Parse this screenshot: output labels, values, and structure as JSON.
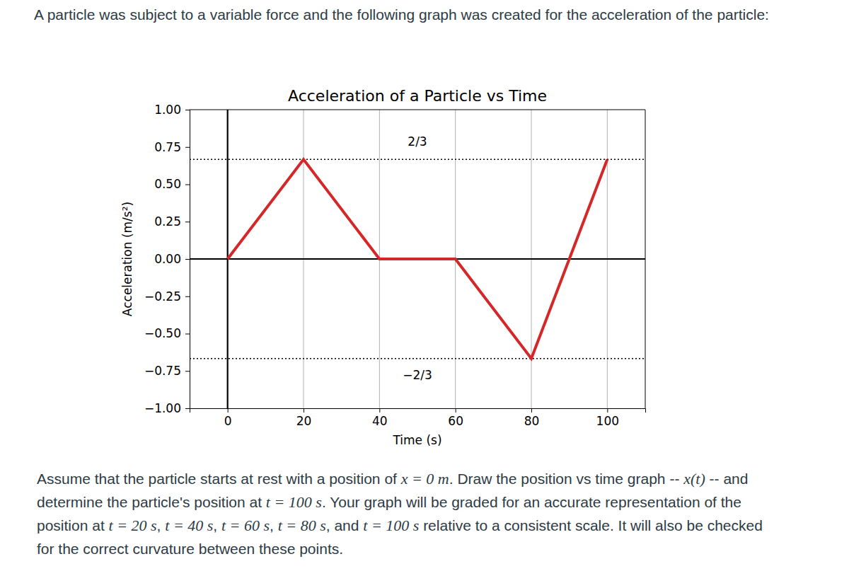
{
  "intro": "A particle was subject to a variable force and the following graph was created for the acceleration of the particle:",
  "question": {
    "segments": [
      {
        "text": "Assume that the particle starts at rest with a position of ",
        "math": false
      },
      {
        "text": "x = 0 m",
        "math": true
      },
      {
        "text": ". Draw the position vs time graph -- ",
        "math": false
      },
      {
        "text": "x(t)",
        "math": true
      },
      {
        "text": " -- and determine the particle's position at ",
        "math": false
      },
      {
        "text": "t = 100 s",
        "math": true
      },
      {
        "text": ". Your graph will be graded for an accurate representation of the position at ",
        "math": false
      },
      {
        "text": "t = 20 s",
        "math": true
      },
      {
        "text": ", ",
        "math": false
      },
      {
        "text": "t = 40 s",
        "math": true
      },
      {
        "text": ", ",
        "math": false
      },
      {
        "text": "t = 60 s",
        "math": true
      },
      {
        "text": ", ",
        "math": false
      },
      {
        "text": "t = 80 s",
        "math": true
      },
      {
        "text": ", and ",
        "math": false
      },
      {
        "text": "t = 100 s",
        "math": true
      },
      {
        "text": " relative to a consistent scale. It will also be checked for the correct curvature between these points.",
        "math": false
      }
    ]
  },
  "chart_data": {
    "type": "line",
    "title": "Acceleration of a Particle vs Time",
    "x_label": "Time (s)",
    "y_label": "Acceleration (m/s²)",
    "x": [
      0,
      20,
      40,
      60,
      80,
      100
    ],
    "values": [
      0,
      0.6667,
      0,
      0,
      -0.6667,
      0.6667
    ],
    "color": "#d62728",
    "xlim": [
      -10,
      110
    ],
    "ylim": [
      -1,
      1
    ],
    "xticks": [
      0,
      20,
      40,
      60,
      80,
      100
    ],
    "yticks": [
      {
        "value": -1,
        "label": "−1.00"
      },
      {
        "value": -0.75,
        "label": "−0.75"
      },
      {
        "value": -0.5,
        "label": "−0.50"
      },
      {
        "value": -0.25,
        "label": "−0.25"
      },
      {
        "value": 0,
        "label": "0.00"
      },
      {
        "value": 0.25,
        "label": "0.25"
      },
      {
        "value": 0.5,
        "label": "0.50"
      },
      {
        "value": 0.75,
        "label": "0.75"
      },
      {
        "value": 1,
        "label": "1.00"
      }
    ],
    "grid": "x",
    "hlines": [
      {
        "value": 0,
        "line_style": "solid"
      },
      {
        "value": 0.6667,
        "line_style": "dotted"
      },
      {
        "value": -0.6667,
        "line_style": "dotted"
      }
    ],
    "vlines": [
      {
        "value": 0,
        "line_style": "solid"
      }
    ],
    "annotations": [
      {
        "text": "2/3",
        "x": 50,
        "y": 0.78
      },
      {
        "text": "−2/3",
        "x": 50,
        "y": -0.78
      }
    ]
  }
}
